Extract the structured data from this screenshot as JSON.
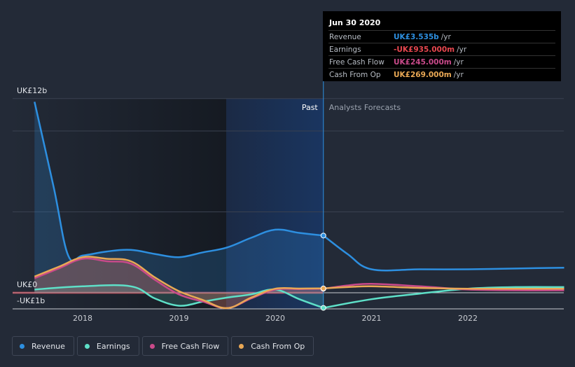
{
  "tooltip": {
    "date": "Jun 30 2020",
    "rows": [
      {
        "label": "Revenue",
        "value": "UK£3.535b",
        "unit": "/yr",
        "color": "#2d8fe0"
      },
      {
        "label": "Earnings",
        "value": "-UK£935.000m",
        "unit": "/yr",
        "color": "#e8474f"
      },
      {
        "label": "Free Cash Flow",
        "value": "UK£245.000m",
        "unit": "/yr",
        "color": "#c94a8a"
      },
      {
        "label": "Cash From Op",
        "value": "UK£269.000m",
        "unit": "/yr",
        "color": "#e9a855"
      }
    ]
  },
  "chart_data": {
    "type": "line",
    "title": "",
    "xlabel": "",
    "ylabel": "",
    "units": "UK£ billions",
    "ylim": [
      -1,
      12
    ],
    "y_axis_labels": [
      "UK£12b",
      "UK£0",
      "-UK£1b"
    ],
    "x_ticks": [
      "2018",
      "2019",
      "2020",
      "2021",
      "2022"
    ],
    "past_label": "Past",
    "forecast_label": "Analysts Forecasts",
    "divider_x": 2020.5,
    "series": [
      {
        "name": "Revenue",
        "color": "#2d8fe0",
        "x": [
          2017.5,
          2017.7,
          2017.85,
          2018.0,
          2018.25,
          2018.5,
          2018.75,
          2019.0,
          2019.25,
          2019.5,
          2019.75,
          2020.0,
          2020.25,
          2020.5,
          2020.75,
          2021.0,
          2021.5,
          2022.0,
          2022.5,
          2023.0
        ],
        "y": [
          11.8,
          6.5,
          2.3,
          2.3,
          2.55,
          2.65,
          2.4,
          2.2,
          2.5,
          2.8,
          3.4,
          3.9,
          3.7,
          3.535,
          2.4,
          1.45,
          1.45,
          1.45,
          1.5,
          1.55
        ]
      },
      {
        "name": "Earnings",
        "color": "#5ee0c8",
        "x": [
          2017.5,
          2018.0,
          2018.5,
          2018.75,
          2019.0,
          2019.25,
          2019.5,
          2019.75,
          2020.0,
          2020.25,
          2020.5,
          2021.0,
          2021.5,
          2022.0,
          2022.5,
          2023.0
        ],
        "y": [
          0.2,
          0.4,
          0.4,
          -0.35,
          -0.8,
          -0.55,
          -0.3,
          -0.1,
          0.2,
          -0.4,
          -0.935,
          -0.4,
          -0.05,
          0.25,
          0.35,
          0.35
        ]
      },
      {
        "name": "Free Cash Flow",
        "color": "#c94a8a",
        "x": [
          2017.5,
          2017.75,
          2018.0,
          2018.25,
          2018.5,
          2018.75,
          2019.0,
          2019.25,
          2019.5,
          2019.75,
          2020.0,
          2020.25,
          2020.5,
          2020.75,
          2021.0,
          2021.5,
          2022.0,
          2022.5,
          2023.0
        ],
        "y": [
          0.9,
          1.5,
          2.1,
          1.95,
          1.8,
          0.8,
          -0.1,
          -0.55,
          -0.95,
          -0.35,
          0.2,
          0.23,
          0.245,
          0.45,
          0.55,
          0.4,
          0.2,
          0.15,
          0.15
        ]
      },
      {
        "name": "Cash From Op",
        "color": "#e9a855",
        "x": [
          2017.5,
          2017.75,
          2018.0,
          2018.25,
          2018.5,
          2018.75,
          2019.0,
          2019.25,
          2019.5,
          2019.75,
          2020.0,
          2020.25,
          2020.5,
          2020.75,
          2021.0,
          2021.5,
          2022.0,
          2022.5,
          2023.0
        ],
        "y": [
          1.0,
          1.6,
          2.2,
          2.1,
          1.95,
          0.95,
          0.1,
          -0.45,
          -0.95,
          -0.3,
          0.25,
          0.26,
          0.269,
          0.35,
          0.4,
          0.3,
          0.25,
          0.25,
          0.25
        ]
      }
    ]
  },
  "legend": [
    {
      "label": "Revenue",
      "color": "#2d8fe0"
    },
    {
      "label": "Earnings",
      "color": "#5ee0c8"
    },
    {
      "label": "Free Cash Flow",
      "color": "#c94a8a"
    },
    {
      "label": "Cash From Op",
      "color": "#e9a855"
    }
  ]
}
